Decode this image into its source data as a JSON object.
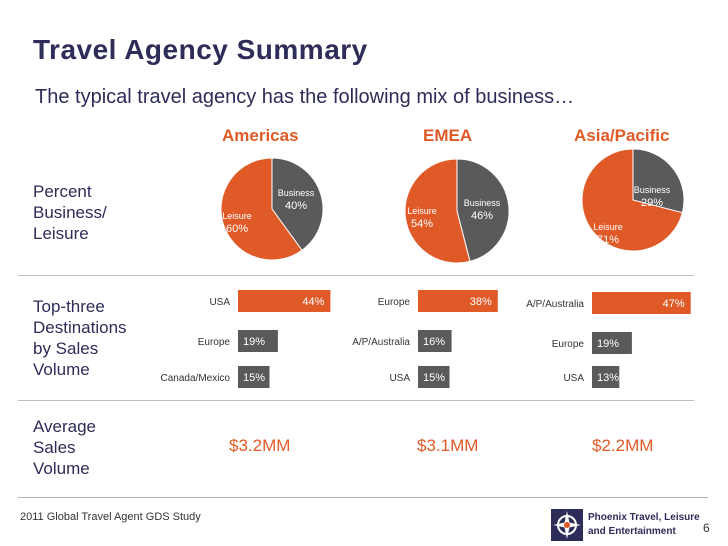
{
  "header": {
    "title": "Travel Agency Summary",
    "subtitle": "The typical travel agency has the following mix of business…"
  },
  "row_labels": {
    "percent": "Percent\nBusiness/\nLeisure",
    "destinations": "Top-three\nDestinations\nby Sales\nVolume",
    "sales": "Average\nSales\nVolume"
  },
  "colors": {
    "business": "#5a5a5a",
    "leisure": "#e05a28",
    "navy": "#2e2c58"
  },
  "chart_data": [
    {
      "type": "pie",
      "title": "Americas",
      "slices": [
        {
          "label": "Business",
          "value": 40,
          "display": "40%"
        },
        {
          "label": "Leisure",
          "value": 60,
          "display": "60%"
        }
      ]
    },
    {
      "type": "pie",
      "title": "EMEA",
      "slices": [
        {
          "label": "Business",
          "value": 46,
          "display": "46%"
        },
        {
          "label": "Leisure",
          "value": 54,
          "display": "54%"
        }
      ]
    },
    {
      "type": "pie",
      "title": "Asia/Pacific",
      "slices": [
        {
          "label": "Business",
          "value": 29,
          "display": "29%"
        },
        {
          "label": "Leisure",
          "value": 71,
          "display": "71%"
        }
      ]
    },
    {
      "type": "bar",
      "title": "Americas top-three destinations",
      "categories": [
        "USA",
        "Europe",
        "Canada/Mexico"
      ],
      "values": [
        44,
        19,
        15
      ],
      "labels": [
        "44%",
        "19%",
        "15%"
      ]
    },
    {
      "type": "bar",
      "title": "EMEA top-three destinations",
      "categories": [
        "Europe",
        "A/P/Australia",
        "USA"
      ],
      "values": [
        38,
        16,
        15
      ],
      "labels": [
        "38%",
        "16%",
        "15%"
      ]
    },
    {
      "type": "bar",
      "title": "Asia/Pacific top-three destinations",
      "categories": [
        "A/P/Australia",
        "Europe",
        "USA"
      ],
      "values": [
        47,
        19,
        13
      ],
      "labels": [
        "47%",
        "19%",
        "13%"
      ]
    }
  ],
  "average_sales": [
    "$3.2MM",
    "$3.1MM",
    "$2.2MM"
  ],
  "footer": {
    "source": "2011 Global Travel Agent GDS Study",
    "page": "6",
    "logo_text": "Phoenix Travel, Leisure\nand Entertainment"
  }
}
